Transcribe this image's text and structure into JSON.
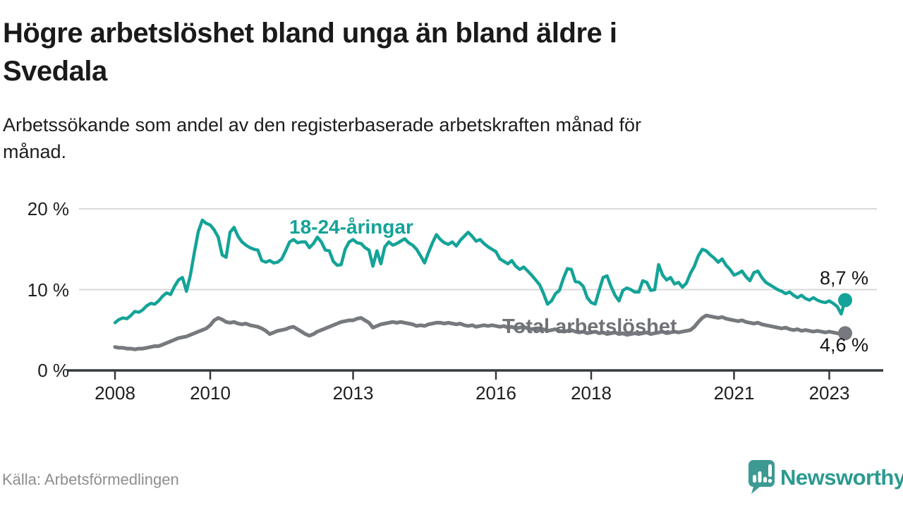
{
  "header": {
    "title_lines": [
      "Högre arbetslöshet bland unga än bland äldre i",
      "Svedala"
    ],
    "subtitle_lines": [
      "Arbetssökande som andel av den registerbaserade arbetskraften månad för",
      "månad."
    ]
  },
  "footer": {
    "source": "Källa: Arbetsförmedlingen",
    "brand": "Newsworthy"
  },
  "colors": {
    "youth_line": "#14a398",
    "total_line": "#76797d",
    "grid": "#d9d9d9",
    "axis": "#343a3d",
    "brand_teal": "#3d9a93"
  },
  "chart_data": {
    "type": "line",
    "title": "Högre arbetslöshet bland unga än bland äldre i Svedala",
    "subtitle": "Arbetssökande som andel av den registerbaserade arbetskraften månad för månad.",
    "x_unit": "month",
    "x_start": "2008-01",
    "x_end": "2023-05",
    "ylim": [
      0,
      21.5
    ],
    "grid": "horizontal",
    "legend_position": "inline-labels",
    "y_ticks": [
      {
        "value": 0,
        "label": "0 %"
      },
      {
        "value": 10,
        "label": "10 %"
      },
      {
        "value": 20,
        "label": "20 %"
      }
    ],
    "x_ticks": [
      {
        "year": 2008,
        "label": "2008"
      },
      {
        "year": 2010,
        "label": "2010"
      },
      {
        "year": 2013,
        "label": "2013"
      },
      {
        "year": 2016,
        "label": "2016"
      },
      {
        "year": 2018,
        "label": "2018"
      },
      {
        "year": 2021,
        "label": "2021"
      },
      {
        "year": 2023,
        "label": "2023"
      }
    ],
    "series": [
      {
        "name": "18-24-åringar",
        "color": "#14a398",
        "end_value": 8.7,
        "end_label": "8,7 %",
        "values": [
          5.9,
          6.3,
          6.5,
          6.4,
          6.8,
          7.3,
          7.2,
          7.5,
          8.0,
          8.3,
          8.2,
          8.6,
          9.2,
          9.6,
          9.4,
          10.4,
          11.2,
          11.5,
          9.8,
          11.8,
          14.6,
          17.2,
          18.6,
          18.2,
          18.0,
          17.4,
          16.5,
          14.3,
          14.0,
          17.1,
          17.7,
          16.6,
          15.9,
          15.5,
          15.2,
          15.0,
          14.9,
          13.6,
          13.4,
          13.6,
          13.3,
          13.4,
          13.8,
          14.8,
          15.9,
          16.2,
          15.8,
          15.9,
          15.9,
          15.2,
          15.7,
          16.5,
          15.9,
          14.9,
          14.8,
          13.5,
          13.0,
          13.1,
          15.0,
          15.9,
          16.2,
          15.8,
          15.7,
          15.2,
          14.9,
          12.9,
          14.8,
          13.2,
          15.3,
          15.9,
          15.5,
          15.7,
          16.0,
          16.3,
          15.8,
          15.5,
          15.0,
          14.2,
          13.3,
          14.6,
          15.8,
          16.8,
          16.2,
          15.8,
          15.6,
          15.9,
          15.4,
          16.1,
          16.6,
          17.1,
          16.6,
          16.0,
          16.2,
          15.7,
          15.3,
          15.0,
          14.7,
          13.8,
          13.5,
          13.2,
          13.6,
          12.9,
          12.5,
          12.8,
          12.3,
          11.8,
          11.2,
          10.6,
          9.5,
          8.2,
          8.6,
          9.5,
          9.9,
          11.4,
          12.6,
          12.5,
          11.0,
          10.9,
          10.4,
          9.0,
          8.4,
          8.2,
          9.9,
          11.5,
          11.7,
          10.4,
          9.3,
          8.6,
          9.9,
          10.2,
          10.0,
          9.7,
          9.7,
          11.1,
          10.9,
          9.9,
          10.0,
          13.1,
          11.8,
          11.2,
          11.5,
          10.7,
          10.9,
          10.3,
          10.8,
          12.0,
          12.9,
          14.2,
          15.0,
          14.8,
          14.3,
          13.9,
          13.4,
          13.8,
          13.0,
          12.5,
          11.8,
          12.0,
          12.3,
          11.6,
          11.1,
          12.1,
          12.3,
          11.5,
          10.9,
          10.6,
          10.3,
          10.0,
          9.8,
          9.5,
          9.7,
          9.3,
          9.0,
          9.3,
          8.9,
          8.7,
          9.0,
          8.7,
          8.5,
          8.4,
          8.6,
          8.3,
          7.9,
          7.0,
          8.7
        ]
      },
      {
        "name": "Total arbetslöshet",
        "color": "#76797d",
        "end_value": 4.6,
        "end_label": "4,6 %",
        "values": [
          2.9,
          2.8,
          2.8,
          2.7,
          2.7,
          2.6,
          2.7,
          2.7,
          2.8,
          2.9,
          3.0,
          3.0,
          3.2,
          3.4,
          3.6,
          3.8,
          4.0,
          4.1,
          4.2,
          4.4,
          4.6,
          4.8,
          5.0,
          5.2,
          5.6,
          6.2,
          6.5,
          6.3,
          6.0,
          5.9,
          6.0,
          5.8,
          5.7,
          5.8,
          5.6,
          5.5,
          5.4,
          5.2,
          4.9,
          4.5,
          4.7,
          4.9,
          5.0,
          5.1,
          5.3,
          5.4,
          5.1,
          4.8,
          4.5,
          4.3,
          4.5,
          4.8,
          5.0,
          5.2,
          5.4,
          5.6,
          5.8,
          6.0,
          6.1,
          6.2,
          6.2,
          6.4,
          6.5,
          6.2,
          5.9,
          5.3,
          5.5,
          5.7,
          5.8,
          5.9,
          6.0,
          5.9,
          6.0,
          5.9,
          5.8,
          5.7,
          5.5,
          5.6,
          5.5,
          5.7,
          5.8,
          5.9,
          5.9,
          5.8,
          5.9,
          5.8,
          5.7,
          5.8,
          5.6,
          5.5,
          5.6,
          5.4,
          5.5,
          5.6,
          5.5,
          5.6,
          5.5,
          5.4,
          5.5,
          5.3,
          5.4,
          5.2,
          5.3,
          5.4,
          5.2,
          5.1,
          5.2,
          5.0,
          5.1,
          4.9,
          5.0,
          5.1,
          4.9,
          4.8,
          4.9,
          5.0,
          4.8,
          4.7,
          4.8,
          4.6,
          4.7,
          4.8,
          4.6,
          4.7,
          4.5,
          4.6,
          4.7,
          4.5,
          4.6,
          4.4,
          4.5,
          4.6,
          4.5,
          4.6,
          4.7,
          4.5,
          4.6,
          4.7,
          4.8,
          4.6,
          4.7,
          4.8,
          4.7,
          4.8,
          4.9,
          5.0,
          5.4,
          6.0,
          6.5,
          6.8,
          6.7,
          6.6,
          6.5,
          6.6,
          6.4,
          6.3,
          6.2,
          6.1,
          6.2,
          6.0,
          5.9,
          5.8,
          5.9,
          5.7,
          5.6,
          5.5,
          5.4,
          5.3,
          5.2,
          5.3,
          5.1,
          5.0,
          5.1,
          4.9,
          5.0,
          4.9,
          4.8,
          4.9,
          4.8,
          4.7,
          4.8,
          4.7,
          4.6,
          4.5,
          4.6
        ]
      }
    ]
  }
}
